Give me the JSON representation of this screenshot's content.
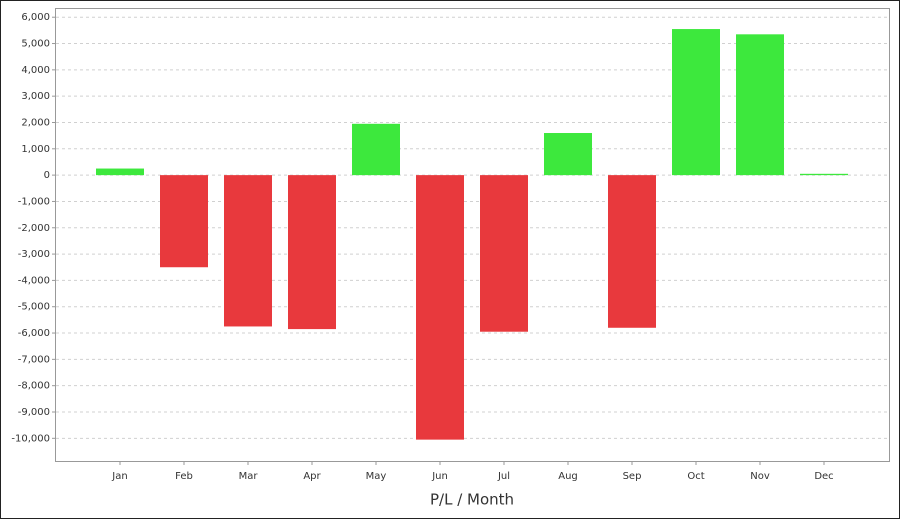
{
  "chart_data": {
    "type": "bar",
    "x_label": "P/L / Month",
    "categories": [
      "Jan",
      "Feb",
      "Mar",
      "Apr",
      "May",
      "Jun",
      "Jul",
      "Aug",
      "Sep",
      "Oct",
      "Nov",
      "Dec"
    ],
    "values": [
      250,
      -3500,
      -5750,
      -5850,
      1950,
      -10050,
      -5950,
      1600,
      -5800,
      5550,
      5350,
      50
    ],
    "positive_color": "#3de83d",
    "negative_color": "#e8393d",
    "ylim": [
      -10900,
      6350
    ],
    "yticks": [
      {
        "value": 6000,
        "label": "6,000"
      },
      {
        "value": 5000,
        "label": "5,000"
      },
      {
        "value": 4000,
        "label": "4,000"
      },
      {
        "value": 3000,
        "label": "3,000"
      },
      {
        "value": 2000,
        "label": "2,000"
      },
      {
        "value": 1000,
        "label": "1,000"
      },
      0,
      {
        "value": -1000,
        "label": "-1,000"
      },
      {
        "value": -2000,
        "label": "-2,000"
      },
      {
        "value": -3000,
        "label": "-3,000"
      },
      {
        "value": -4000,
        "label": "-4,000"
      },
      {
        "value": -5000,
        "label": "-5,000"
      },
      {
        "value": -6000,
        "label": "-6,000"
      },
      {
        "value": -7000,
        "label": "-7,000"
      },
      {
        "value": -8000,
        "label": "-8,000"
      },
      {
        "value": -9000,
        "label": "-9,000"
      },
      {
        "value": -10000,
        "label": "-10,000"
      }
    ],
    "grid": true
  }
}
